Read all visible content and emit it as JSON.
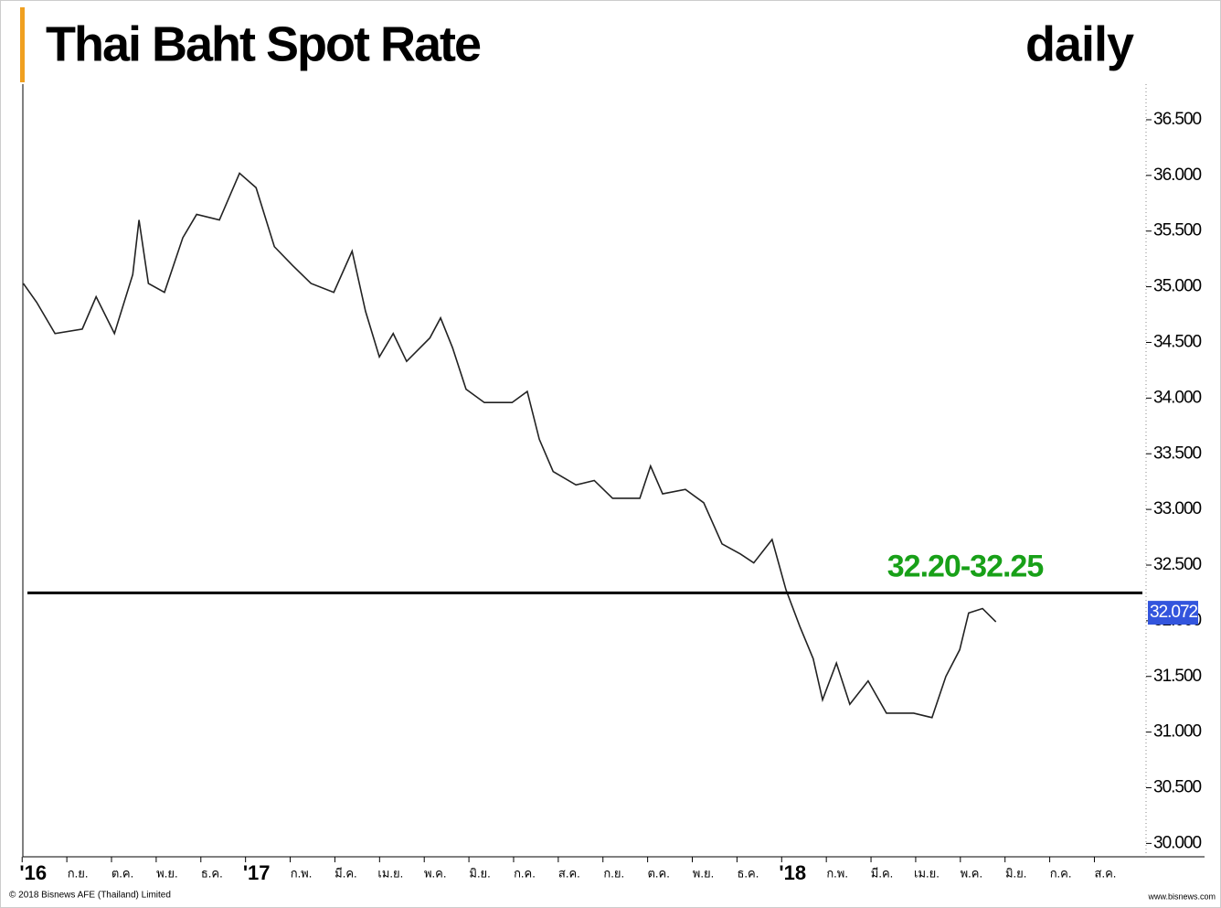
{
  "chart_data": {
    "type": "line",
    "title": "Thai Baht Spot Rate",
    "subtitle": "daily",
    "annotation": "32.20-32.25",
    "annotation_color": "#18a018",
    "level": 32.25,
    "last_value": 32.072,
    "last_value_color": "#3355dd",
    "copyright": "© 2018 Bisnews AFE (Thailand) Limited",
    "source": "www.bisnews.com",
    "xlim": [
      -0.23,
      24.87
    ],
    "ylim": [
      29.88,
      36.82
    ],
    "xticks": [
      {
        "value": 0,
        "label": "'16"
      },
      {
        "value": 1,
        "label": "ก.ย."
      },
      {
        "value": 2,
        "label": "ต.ค."
      },
      {
        "value": 3,
        "label": "พ.ย."
      },
      {
        "value": 4,
        "label": "ธ.ค."
      },
      {
        "value": 5,
        "label": "'17"
      },
      {
        "value": 6,
        "label": "ก.พ."
      },
      {
        "value": 7,
        "label": "มี.ค."
      },
      {
        "value": 8,
        "label": "เม.ย."
      },
      {
        "value": 9,
        "label": "พ.ค."
      },
      {
        "value": 10,
        "label": "มิ.ย."
      },
      {
        "value": 11,
        "label": "ก.ค."
      },
      {
        "value": 12,
        "label": "ส.ค."
      },
      {
        "value": 13,
        "label": "ก.ย."
      },
      {
        "value": 14,
        "label": "ต.ค."
      },
      {
        "value": 15,
        "label": "พ.ย."
      },
      {
        "value": 16,
        "label": "ธ.ค."
      },
      {
        "value": 17,
        "label": "'18"
      },
      {
        "value": 18,
        "label": "ก.พ."
      },
      {
        "value": 19,
        "label": "มี.ค."
      },
      {
        "value": 20,
        "label": "เม.ย."
      },
      {
        "value": 21,
        "label": "พ.ค."
      },
      {
        "value": 22,
        "label": "มิ.ย."
      },
      {
        "value": 23,
        "label": "ก.ค."
      },
      {
        "value": 24,
        "label": "ส.ค."
      }
    ],
    "yticks": [
      {
        "value": 30,
        "label": "30.000"
      },
      {
        "value": 30.5,
        "label": "30.500"
      },
      {
        "value": 31,
        "label": "31.000"
      },
      {
        "value": 31.5,
        "label": "31.500"
      },
      {
        "value": 32,
        "label": "32.000"
      },
      {
        "value": 32.5,
        "label": "32.500"
      },
      {
        "value": 33,
        "label": "33.000"
      },
      {
        "value": 33.5,
        "label": "33.500"
      },
      {
        "value": 34,
        "label": "34.000"
      },
      {
        "value": 34.5,
        "label": "34.500"
      },
      {
        "value": 35,
        "label": "35.000"
      },
      {
        "value": 35.5,
        "label": "35.500"
      },
      {
        "value": 36,
        "label": "36.000"
      },
      {
        "value": 36.5,
        "label": "36.500"
      }
    ],
    "x": [
      -0.22,
      0.08,
      0.49,
      1.1,
      1.41,
      1.82,
      2.23,
      2.37,
      2.58,
      2.94,
      3.35,
      3.66,
      4.17,
      4.62,
      4.99,
      5.4,
      5.81,
      6.22,
      6.73,
      7.14,
      7.44,
      7.75,
      8.06,
      8.36,
      8.88,
      9.12,
      9.39,
      9.69,
      10.1,
      10.72,
      11.06,
      11.33,
      11.64,
      12.15,
      12.56,
      12.97,
      13.58,
      13.82,
      14.09,
      14.6,
      15.01,
      15.42,
      15.83,
      16.13,
      16.54,
      16.85,
      17.16,
      17.46,
      17.67,
      17.98,
      18.28,
      18.69,
      19.1,
      19.71,
      20.12,
      20.43,
      20.74,
      20.94,
      21.25,
      21.55
    ],
    "series": [
      {
        "color": "#222222",
        "values": [
          35.03,
          34.86,
          34.58,
          34.62,
          34.91,
          34.58,
          35.11,
          35.6,
          35.03,
          34.95,
          35.44,
          35.65,
          35.6,
          36.02,
          35.89,
          35.36,
          35.19,
          35.03,
          34.95,
          35.32,
          34.78,
          34.37,
          34.58,
          34.33,
          34.54,
          34.72,
          34.45,
          34.08,
          33.96,
          33.96,
          34.06,
          33.63,
          33.34,
          33.22,
          33.26,
          33.1,
          33.1,
          33.39,
          33.14,
          33.18,
          33.06,
          32.69,
          32.6,
          32.52,
          32.73,
          32.28,
          31.95,
          31.66,
          31.29,
          31.62,
          31.25,
          31.46,
          31.17,
          31.17,
          31.13,
          31.5,
          31.74,
          32.07,
          32.11,
          31.99
        ]
      }
    ]
  }
}
